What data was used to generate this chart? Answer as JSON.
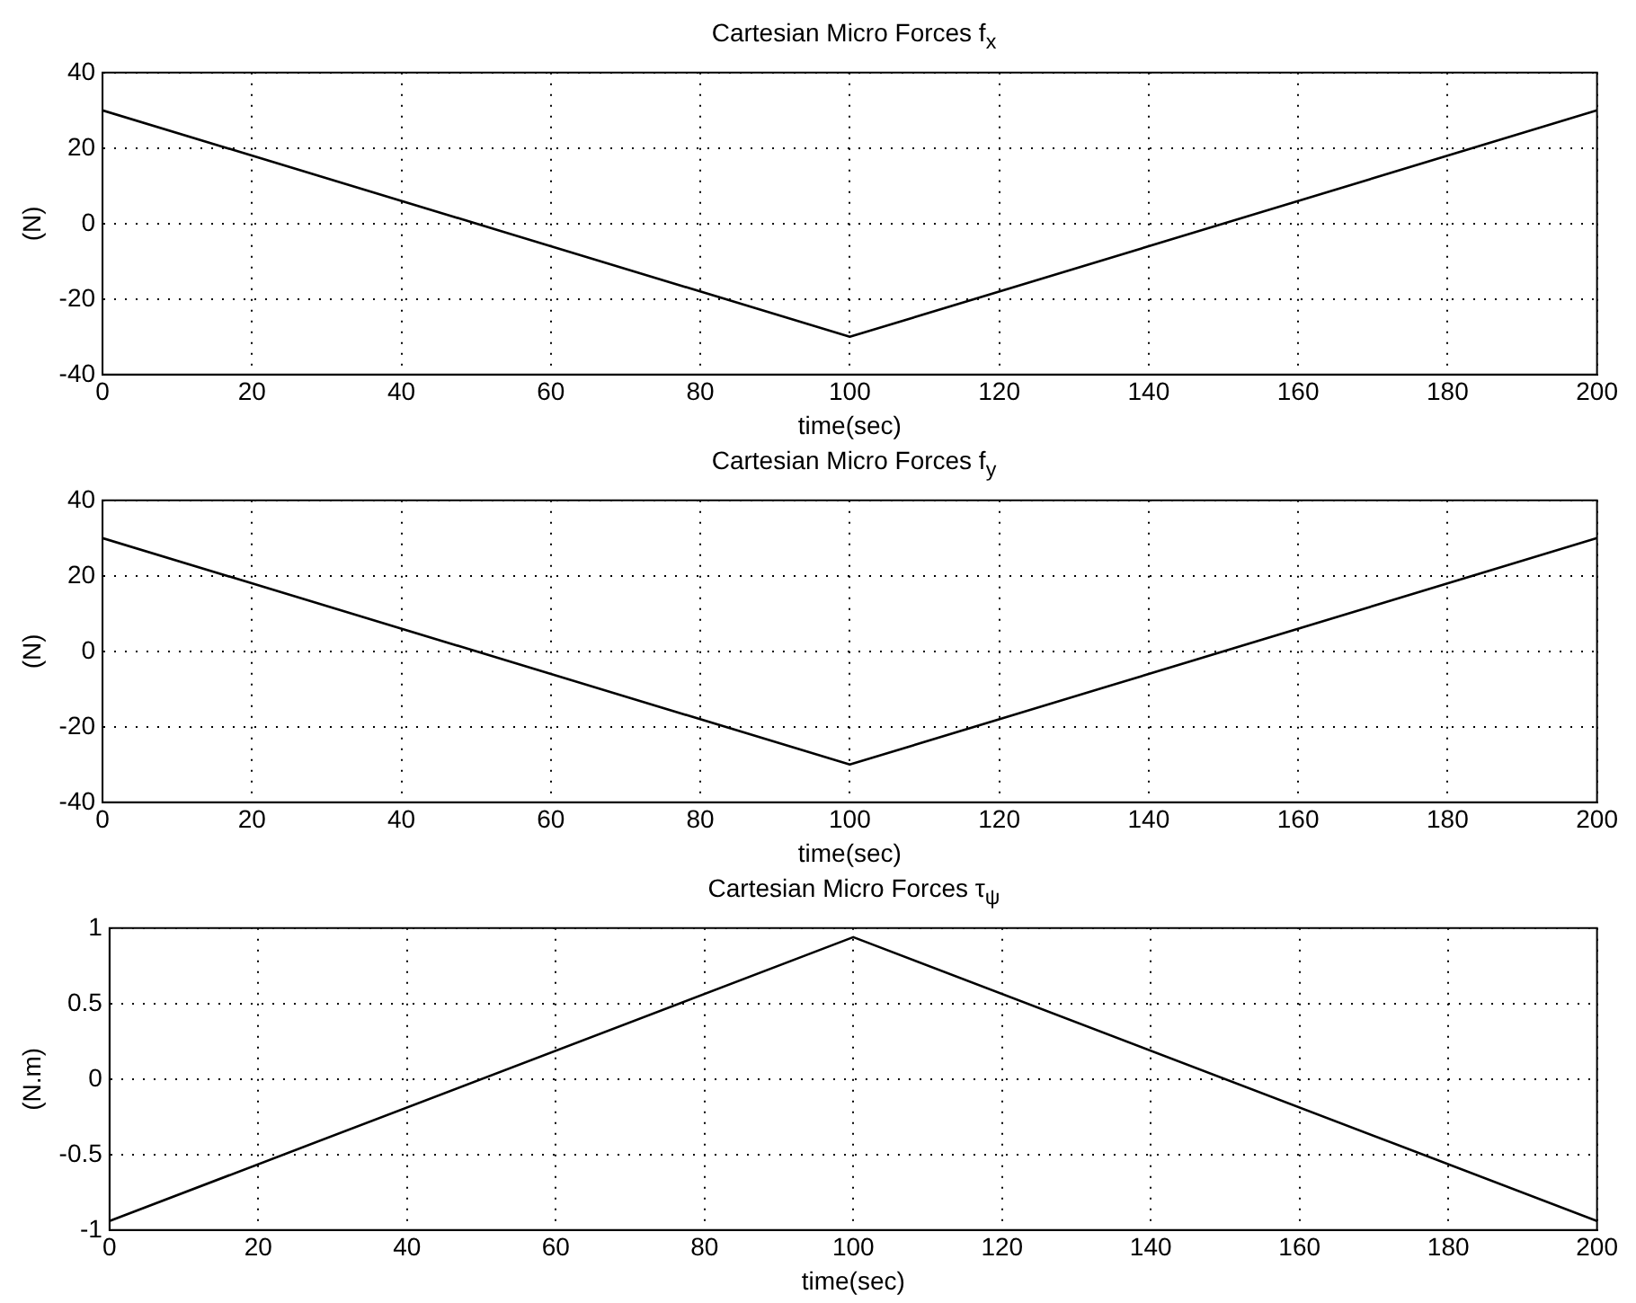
{
  "chart_data": [
    {
      "type": "line",
      "title": "Cartesian Micro Forces f$_{x}$",
      "xlabel": "time(sec)",
      "ylabel": "(N)",
      "x": [
        0,
        100,
        200
      ],
      "series": [
        {
          "color": "#000000",
          "values": [
            30,
            -30,
            30
          ]
        }
      ],
      "xlim": [
        0,
        200
      ],
      "xticks": [
        0,
        20,
        40,
        60,
        80,
        100,
        120,
        140,
        160,
        180,
        200
      ],
      "ylim": [
        -40,
        40
      ],
      "yticks": [
        -40,
        -20,
        0,
        20,
        40
      ],
      "grid": true,
      "legend": false,
      "marker": "none",
      "line_style": "solid"
    },
    {
      "type": "line",
      "title": "Cartesian Micro Forces f$_{y}$",
      "xlabel": "time(sec)",
      "ylabel": "(N)",
      "x": [
        0,
        100,
        200
      ],
      "series": [
        {
          "color": "#000000",
          "values": [
            30,
            -30,
            30
          ]
        }
      ],
      "xlim": [
        0,
        200
      ],
      "xticks": [
        0,
        20,
        40,
        60,
        80,
        100,
        120,
        140,
        160,
        180,
        200
      ],
      "ylim": [
        -40,
        40
      ],
      "yticks": [
        -40,
        -20,
        0,
        20,
        40
      ],
      "grid": true,
      "legend": false,
      "marker": "none",
      "line_style": "solid"
    },
    {
      "type": "line",
      "title": "Cartesian Micro Forces τ$_{ψ}$",
      "xlabel": "time(sec)",
      "ylabel": "(N.m)",
      "x": [
        0,
        100,
        200
      ],
      "series": [
        {
          "color": "#000000",
          "values": [
            -0.94,
            0.94,
            -0.94
          ]
        }
      ],
      "xlim": [
        0,
        200
      ],
      "xticks": [
        0,
        20,
        40,
        60,
        80,
        100,
        120,
        140,
        160,
        180,
        200
      ],
      "ylim": [
        -1,
        1
      ],
      "yticks": [
        -1,
        -0.5,
        0,
        0.5,
        1
      ],
      "grid": true,
      "legend": false,
      "marker": "none",
      "line_style": "solid"
    }
  ]
}
